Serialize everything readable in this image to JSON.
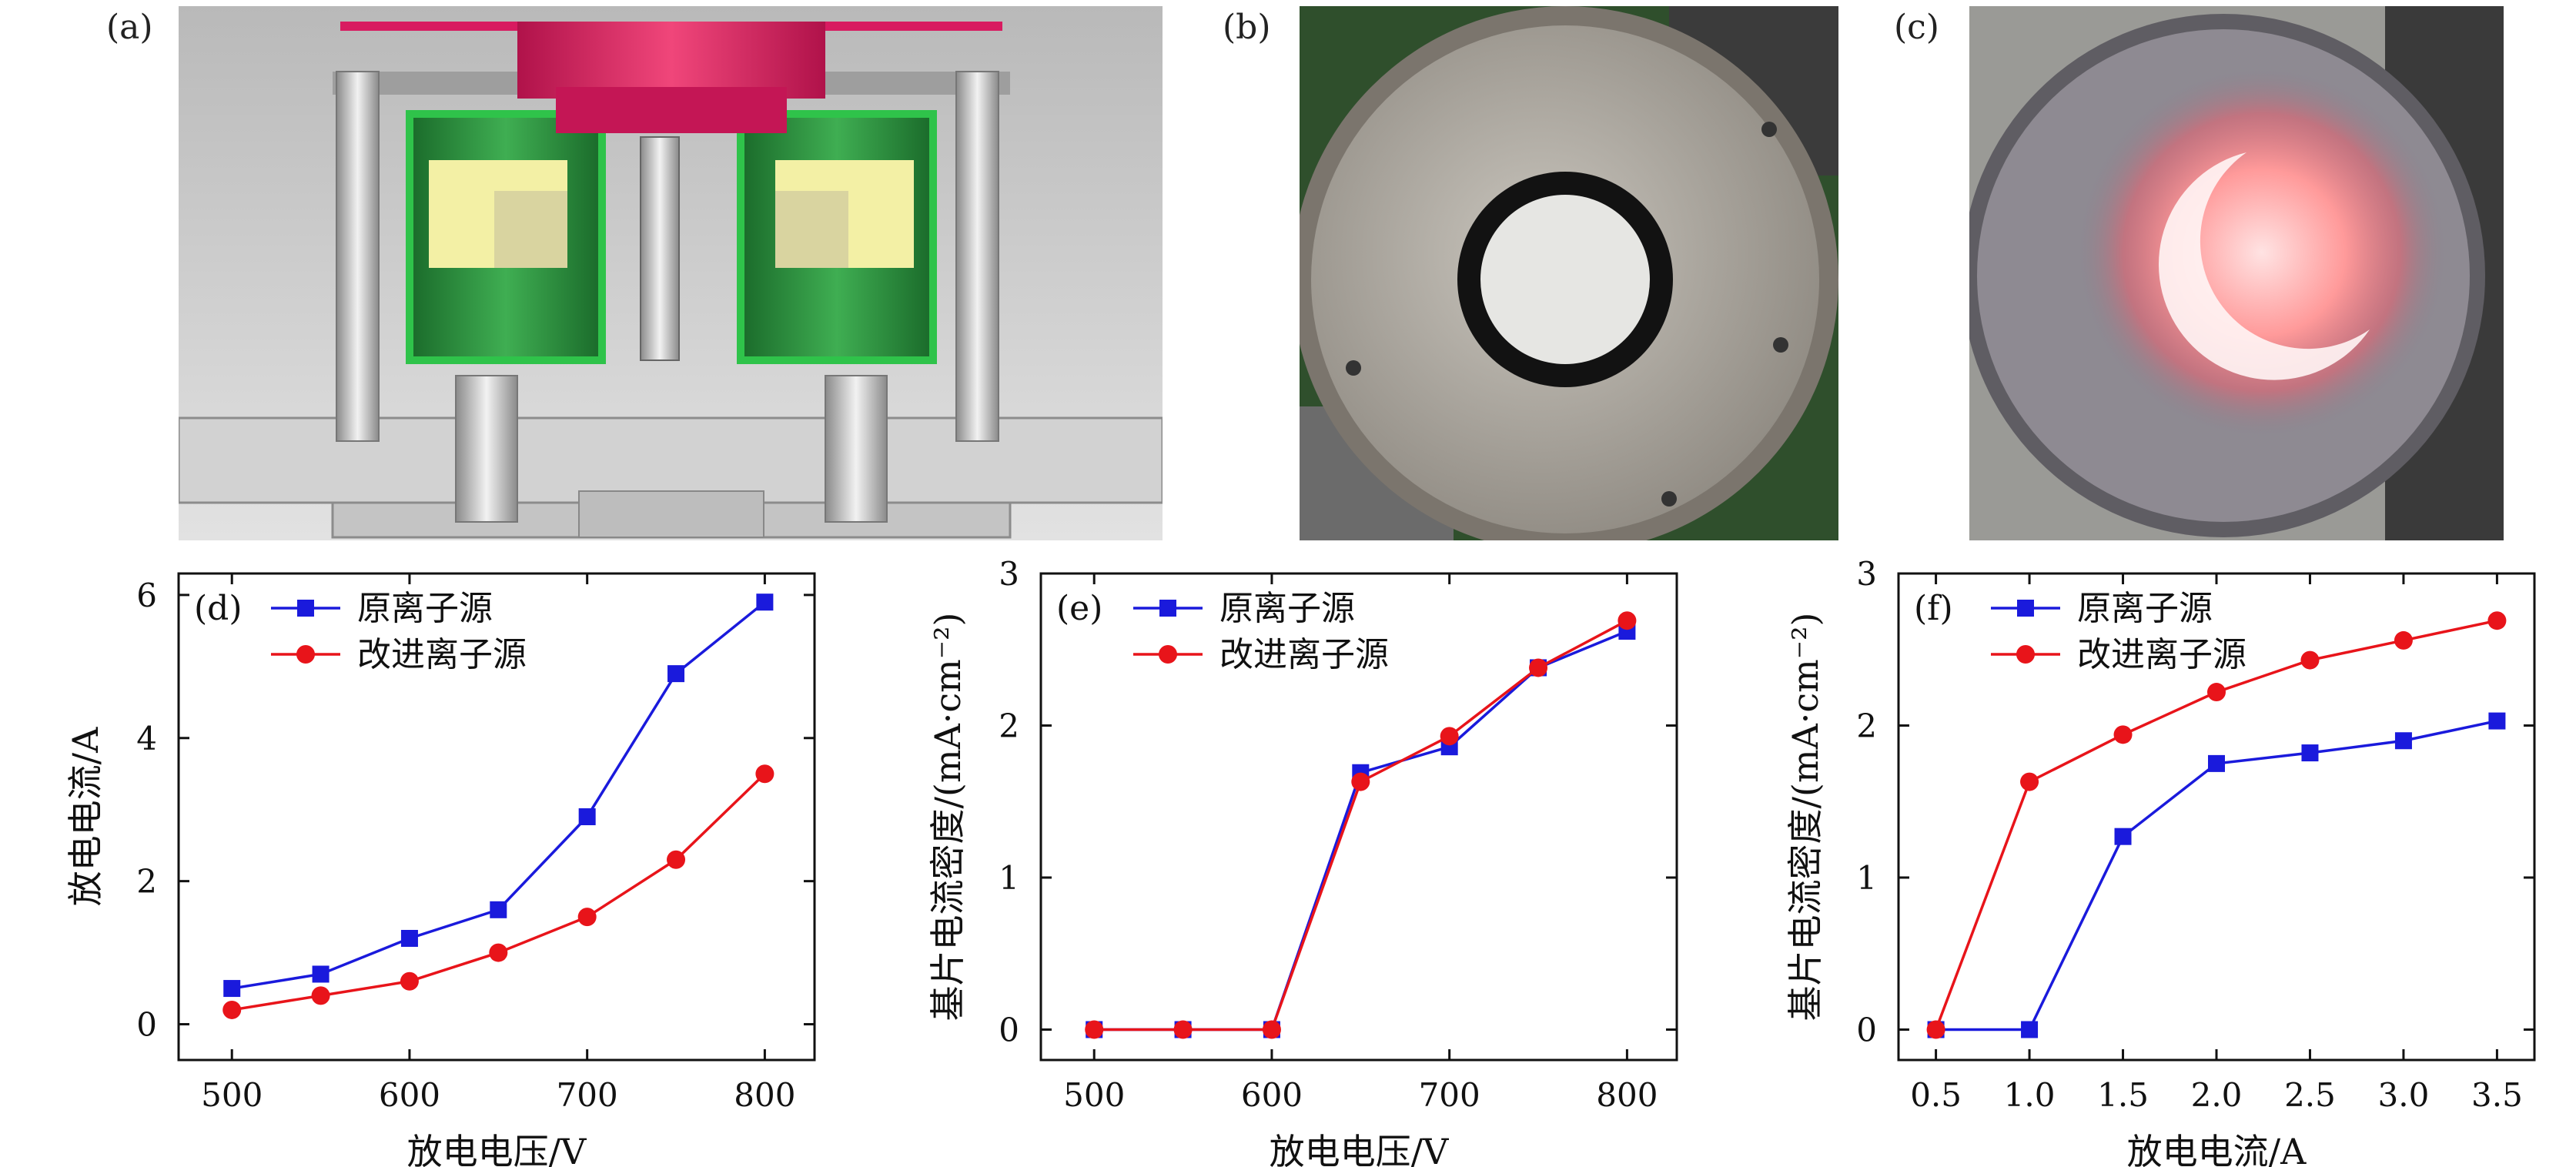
{
  "panels": {
    "a": "(a)",
    "b": "(b)",
    "c": "(c)"
  },
  "colors": {
    "series_original": "#1a1adc",
    "series_improved": "#e8141a",
    "magenta": "#d81b60",
    "green": "#1f9e3a",
    "yellow": "#f4f1a8"
  },
  "chart_data": [
    {
      "panel_label": "(d)",
      "type": "line",
      "xlabel": "放电电压/V",
      "ylabel": "放电电流/A",
      "xlim": [
        470,
        828
      ],
      "ylim": [
        -0.5,
        6.3
      ],
      "xticks": [
        "500",
        "600",
        "700",
        "800"
      ],
      "xtick_values": [
        500,
        600,
        700,
        800
      ],
      "yticks": [
        "0",
        "2",
        "4",
        "6"
      ],
      "ytick_values": [
        0,
        2,
        4,
        6
      ],
      "legend": "top-left",
      "series": [
        {
          "name": "原离子源",
          "marker": "square",
          "x": [
            500,
            550,
            600,
            650,
            700,
            750,
            800
          ],
          "y": [
            0.5,
            0.7,
            1.2,
            1.6,
            2.9,
            4.9,
            5.9
          ]
        },
        {
          "name": "改进离子源",
          "marker": "circle",
          "x": [
            500,
            550,
            600,
            650,
            700,
            750,
            800
          ],
          "y": [
            0.2,
            0.4,
            0.6,
            1.0,
            1.5,
            2.3,
            3.5
          ]
        }
      ]
    },
    {
      "panel_label": "(e)",
      "type": "line",
      "xlabel": "放电电压/V",
      "ylabel": "基片电流密度/(mA·cm⁻²)",
      "xlim": [
        470,
        828
      ],
      "ylim": [
        -0.2,
        3.0
      ],
      "xticks": [
        "500",
        "600",
        "700",
        "800"
      ],
      "xtick_values": [
        500,
        600,
        700,
        800
      ],
      "yticks": [
        "0",
        "1",
        "2",
        "3"
      ],
      "ytick_values": [
        0,
        1,
        2,
        3
      ],
      "legend": "top-left",
      "series": [
        {
          "name": "原离子源",
          "marker": "square",
          "x": [
            500,
            550,
            600,
            650,
            700,
            750,
            800
          ],
          "y": [
            0,
            0,
            0,
            1.69,
            1.86,
            2.38,
            2.62
          ]
        },
        {
          "name": "改进离子源",
          "marker": "circle",
          "x": [
            500,
            550,
            600,
            650,
            700,
            750,
            800
          ],
          "y": [
            0,
            0,
            0,
            1.63,
            1.93,
            2.38,
            2.69
          ]
        }
      ]
    },
    {
      "panel_label": "(f)",
      "type": "line",
      "xlabel": "放电电流/A",
      "ylabel": "基片电流密度/(mA·cm⁻²)",
      "xlim": [
        0.3,
        3.7
      ],
      "ylim": [
        -0.2,
        3.0
      ],
      "xticks": [
        "0.5",
        "1.0",
        "1.5",
        "2.0",
        "2.5",
        "3.0",
        "3.5"
      ],
      "xtick_values": [
        0.5,
        1.0,
        1.5,
        2.0,
        2.5,
        3.0,
        3.5
      ],
      "yticks": [
        "0",
        "1",
        "2",
        "3"
      ],
      "ytick_values": [
        0,
        1,
        2,
        3
      ],
      "legend": "top-left",
      "series": [
        {
          "name": "原离子源",
          "marker": "square",
          "x": [
            0.5,
            1.0,
            1.5,
            2.0,
            2.5,
            3.0,
            3.5
          ],
          "y": [
            0,
            0,
            1.27,
            1.75,
            1.82,
            1.9,
            2.03
          ]
        },
        {
          "name": "改进离子源",
          "marker": "circle",
          "x": [
            0.5,
            1.0,
            1.5,
            2.0,
            2.5,
            3.0,
            3.5
          ],
          "y": [
            0,
            1.63,
            1.94,
            2.22,
            2.43,
            2.56,
            2.69
          ]
        }
      ]
    }
  ]
}
